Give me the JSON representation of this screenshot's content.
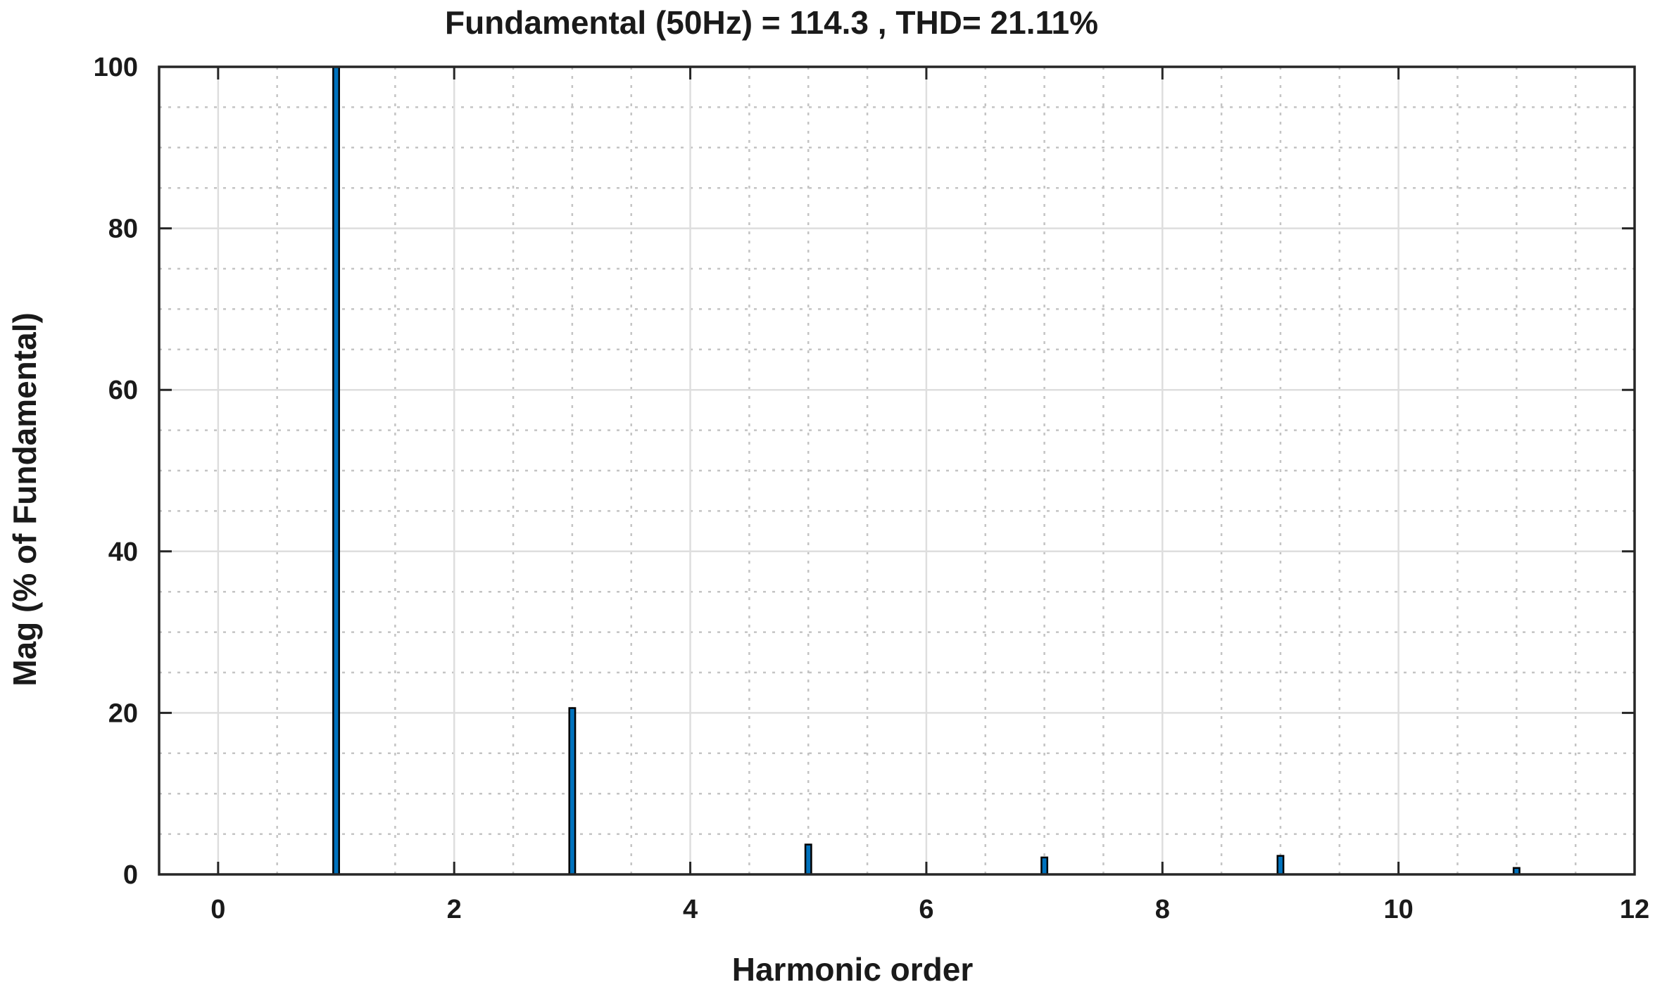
{
  "chart_data": {
    "type": "bar",
    "title": "Fundamental (50Hz) = 114.3 , THD= 21.11%",
    "xlabel": "Harmonic order",
    "ylabel": "Mag (% of Fundamental)",
    "xlim": [
      -0.5,
      12
    ],
    "ylim": [
      0,
      100
    ],
    "xticks": [
      0,
      2,
      4,
      6,
      8,
      10,
      12
    ],
    "yticks": [
      0,
      20,
      40,
      60,
      80,
      100
    ],
    "x_minor_step": 0.5,
    "y_minor_step": 5,
    "grid": true,
    "minor_grid": true,
    "bar_width": 0.05,
    "series": [
      {
        "x": [
          1,
          3,
          5,
          7,
          9,
          11
        ],
        "values": [
          100,
          20.6,
          3.7,
          2.1,
          2.3,
          0.8
        ]
      }
    ]
  },
  "colors": {
    "bar_fill": "#0072BD",
    "bar_edge": "#000000",
    "axis": "#262626",
    "major_grid": "#dedede",
    "minor_grid": "#c4c4c4"
  }
}
